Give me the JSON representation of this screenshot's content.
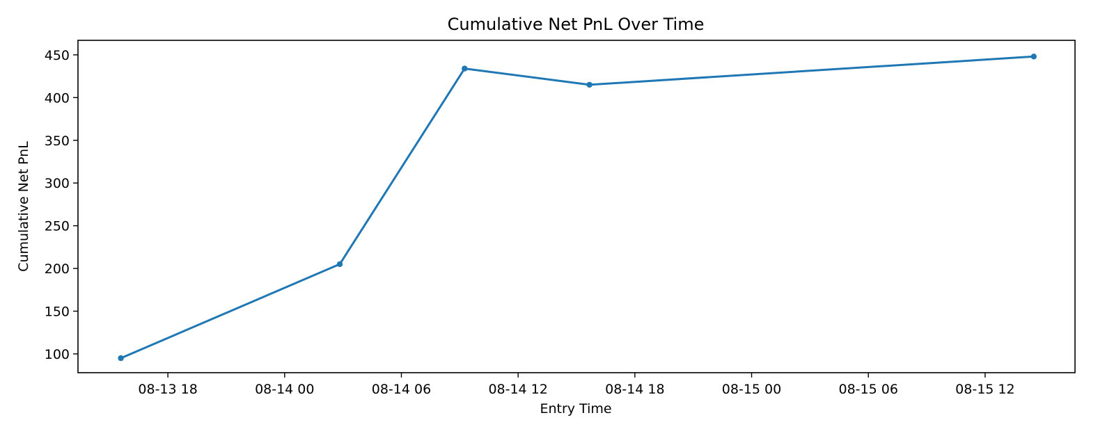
{
  "chart_data": {
    "type": "line",
    "title": "Cumulative Net PnL Over Time",
    "xlabel": "Entry Time",
    "ylabel": "Cumulative Net PnL",
    "x_ticks": [
      "08-13 18",
      "08-14 00",
      "08-14 06",
      "08-14 12",
      "08-14 18",
      "08-15 00",
      "08-15 06",
      "08-15 12"
    ],
    "y_ticks": [
      "100",
      "150",
      "200",
      "250",
      "300",
      "350",
      "400",
      "450"
    ],
    "ylim": [
      78,
      467
    ],
    "grid": false,
    "series": [
      {
        "color": "#1f77b4",
        "marker": "circle",
        "x": [
          "08-13 15:35",
          "08-14 02:50",
          "08-14 09:15",
          "08-14 15:40",
          "08-15 14:30"
        ],
        "y": [
          95,
          205,
          434,
          415,
          448
        ]
      }
    ]
  }
}
